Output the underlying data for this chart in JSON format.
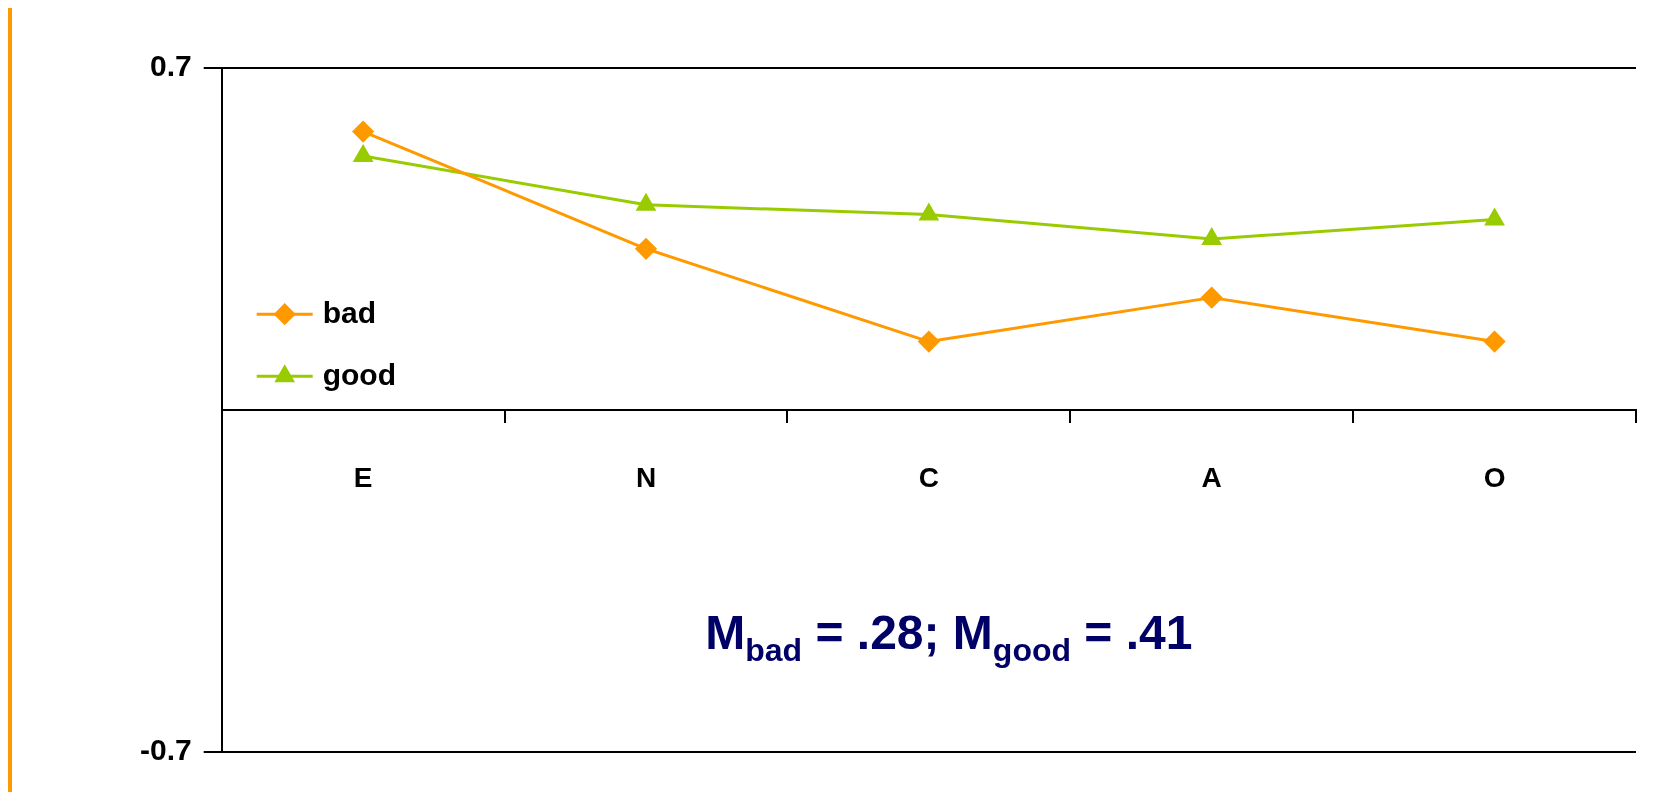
{
  "chart_data": {
    "type": "line",
    "categories": [
      "E",
      "N",
      "C",
      "A",
      "O"
    ],
    "series": [
      {
        "name": "bad",
        "color": "#ff9900",
        "marker": "diamond",
        "values": [
          0.57,
          0.33,
          0.14,
          0.23,
          0.14
        ]
      },
      {
        "name": "good",
        "color": "#99cc00",
        "marker": "triangle",
        "values": [
          0.52,
          0.42,
          0.4,
          0.35,
          0.39
        ]
      }
    ],
    "ylim": [
      -0.7,
      0.7
    ],
    "yticks": [
      -0.7,
      0.7
    ],
    "grid": "y",
    "legend": "left",
    "annotations": [
      "M$_{bad}$ = .28; M$_{good}$ = .41"
    ]
  }
}
